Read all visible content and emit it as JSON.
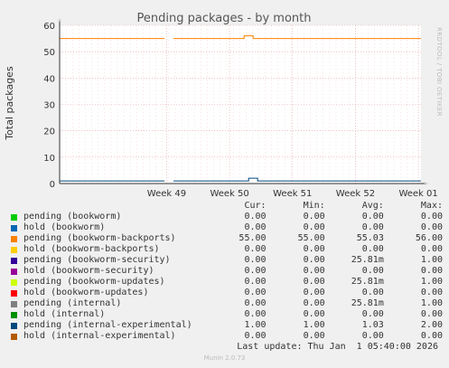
{
  "chart_data": {
    "type": "line",
    "title": "Pending packages - by month",
    "ylabel": "Total packages",
    "xlabel": "",
    "ylim": [
      0,
      60
    ],
    "yticks": [
      0,
      10,
      20,
      30,
      40,
      50,
      60
    ],
    "xticks": [
      "Week 49",
      "Week 50",
      "Week 51",
      "Week 52",
      "Week 01"
    ],
    "grid": true,
    "side_text": "RRDTOOL / TOBI OETIKER",
    "series": [
      {
        "name": "pending (bookworm)",
        "color": "#00cc00",
        "cur": "0.00",
        "min": "0.00",
        "avg": "0.00",
        "max": "0.00"
      },
      {
        "name": "hold (bookworm)",
        "color": "#0066b3",
        "cur": "0.00",
        "min": "0.00",
        "avg": "0.00",
        "max": "0.00"
      },
      {
        "name": "pending (bookworm-backports)",
        "color": "#ff8000",
        "cur": "55.00",
        "min": "55.00",
        "avg": "55.03",
        "max": "56.00"
      },
      {
        "name": "hold (bookworm-backports)",
        "color": "#ffcc00",
        "cur": "0.00",
        "min": "0.00",
        "avg": "0.00",
        "max": "0.00"
      },
      {
        "name": "pending (bookworm-security)",
        "color": "#330099",
        "cur": "0.00",
        "min": "0.00",
        "avg": "25.81m",
        "max": "1.00"
      },
      {
        "name": "hold (bookworm-security)",
        "color": "#990099",
        "cur": "0.00",
        "min": "0.00",
        "avg": "0.00",
        "max": "0.00"
      },
      {
        "name": "pending (bookworm-updates)",
        "color": "#ccff00",
        "cur": "0.00",
        "min": "0.00",
        "avg": "25.81m",
        "max": "1.00"
      },
      {
        "name": "hold (bookworm-updates)",
        "color": "#ff0000",
        "cur": "0.00",
        "min": "0.00",
        "avg": "0.00",
        "max": "0.00"
      },
      {
        "name": "pending (internal)",
        "color": "#808080",
        "cur": "0.00",
        "min": "0.00",
        "avg": "25.81m",
        "max": "1.00"
      },
      {
        "name": "hold (internal)",
        "color": "#008f00",
        "cur": "0.00",
        "min": "0.00",
        "avg": "0.00",
        "max": "0.00"
      },
      {
        "name": "pending (internal-experimental)",
        "color": "#00487d",
        "cur": "1.00",
        "min": "1.00",
        "avg": "1.03",
        "max": "2.00"
      },
      {
        "name": "hold (internal-experimental)",
        "color": "#b35a00",
        "cur": "0.00",
        "min": "0.00",
        "avg": "0.00",
        "max": "0.00"
      }
    ]
  },
  "legend_header": {
    "cur": "Cur:",
    "min": "Min:",
    "avg": "Avg:",
    "max": "Max:"
  },
  "last_update": "Last update: Thu Jan  1 05:40:00 2026",
  "footer": "Munin 2.0.73"
}
